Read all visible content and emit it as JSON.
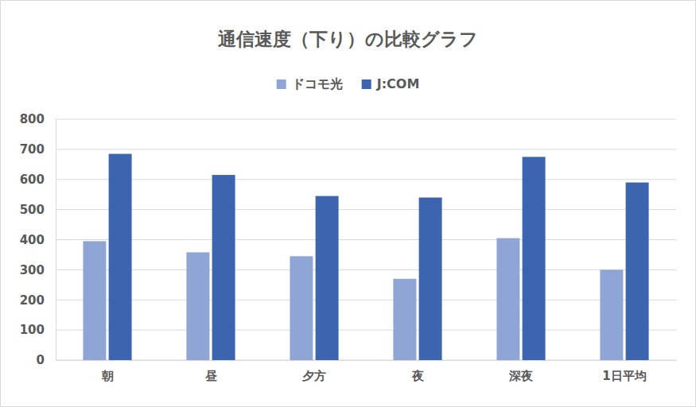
{
  "chart_data": {
    "type": "bar",
    "title": "通信速度（下り）の比較グラフ",
    "categories": [
      "朝",
      "昼",
      "夕方",
      "夜",
      "深夜",
      "1日平均"
    ],
    "series": [
      {
        "name": "ドコモ光",
        "color": "#8fa5d6",
        "values": [
          395,
          358,
          345,
          270,
          405,
          300
        ]
      },
      {
        "name": "J:COM",
        "color": "#3d64ae",
        "values": [
          685,
          615,
          545,
          540,
          675,
          590
        ]
      }
    ],
    "ylim": [
      0,
      800
    ],
    "yticks": [
      0,
      100,
      200,
      300,
      400,
      500,
      600,
      700,
      800
    ],
    "grid": true,
    "legend": "top"
  }
}
